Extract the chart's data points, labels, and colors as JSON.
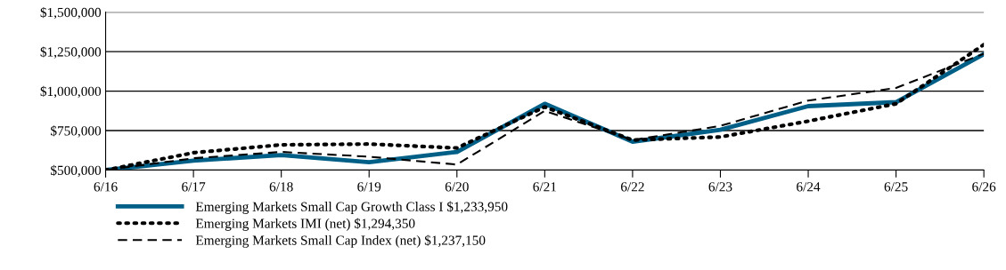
{
  "chart_data": {
    "type": "line",
    "categories": [
      "6/16",
      "6/17",
      "6/18",
      "6/19",
      "6/20",
      "6/21",
      "6/22",
      "6/23",
      "6/24",
      "6/25",
      "6/26"
    ],
    "ylim": [
      500000,
      1500000
    ],
    "yticks": [
      {
        "value": 500000,
        "label": "$500,000"
      },
      {
        "value": 750000,
        "label": "$750,000"
      },
      {
        "value": 1000000,
        "label": "$1,000,000"
      },
      {
        "value": 1250000,
        "label": "$1,250,000"
      },
      {
        "value": 1500000,
        "label": "$1,500,000"
      }
    ],
    "grid": "y",
    "legend": "bottom",
    "series": [
      {
        "name": "Emerging Markets Small Cap Growth Class I $1,233,950",
        "color": "#005f87",
        "line_style": "solid",
        "values": [
          500000,
          560000,
          595000,
          550000,
          615000,
          920000,
          680000,
          755000,
          905000,
          930000,
          1233950
        ]
      },
      {
        "name": "Emerging Markets IMI (net) $1,294,350",
        "color": "#000000",
        "line_style": "dotted",
        "values": [
          500000,
          610000,
          660000,
          665000,
          640000,
          900000,
          690000,
          710000,
          810000,
          920000,
          1294350
        ]
      },
      {
        "name": "Emerging Markets Small Cap Index (net) $1,237,150",
        "color": "#000000",
        "line_style": "dashed",
        "values": [
          500000,
          575000,
          615000,
          585000,
          535000,
          875000,
          690000,
          780000,
          940000,
          1020000,
          1237150
        ]
      }
    ]
  }
}
